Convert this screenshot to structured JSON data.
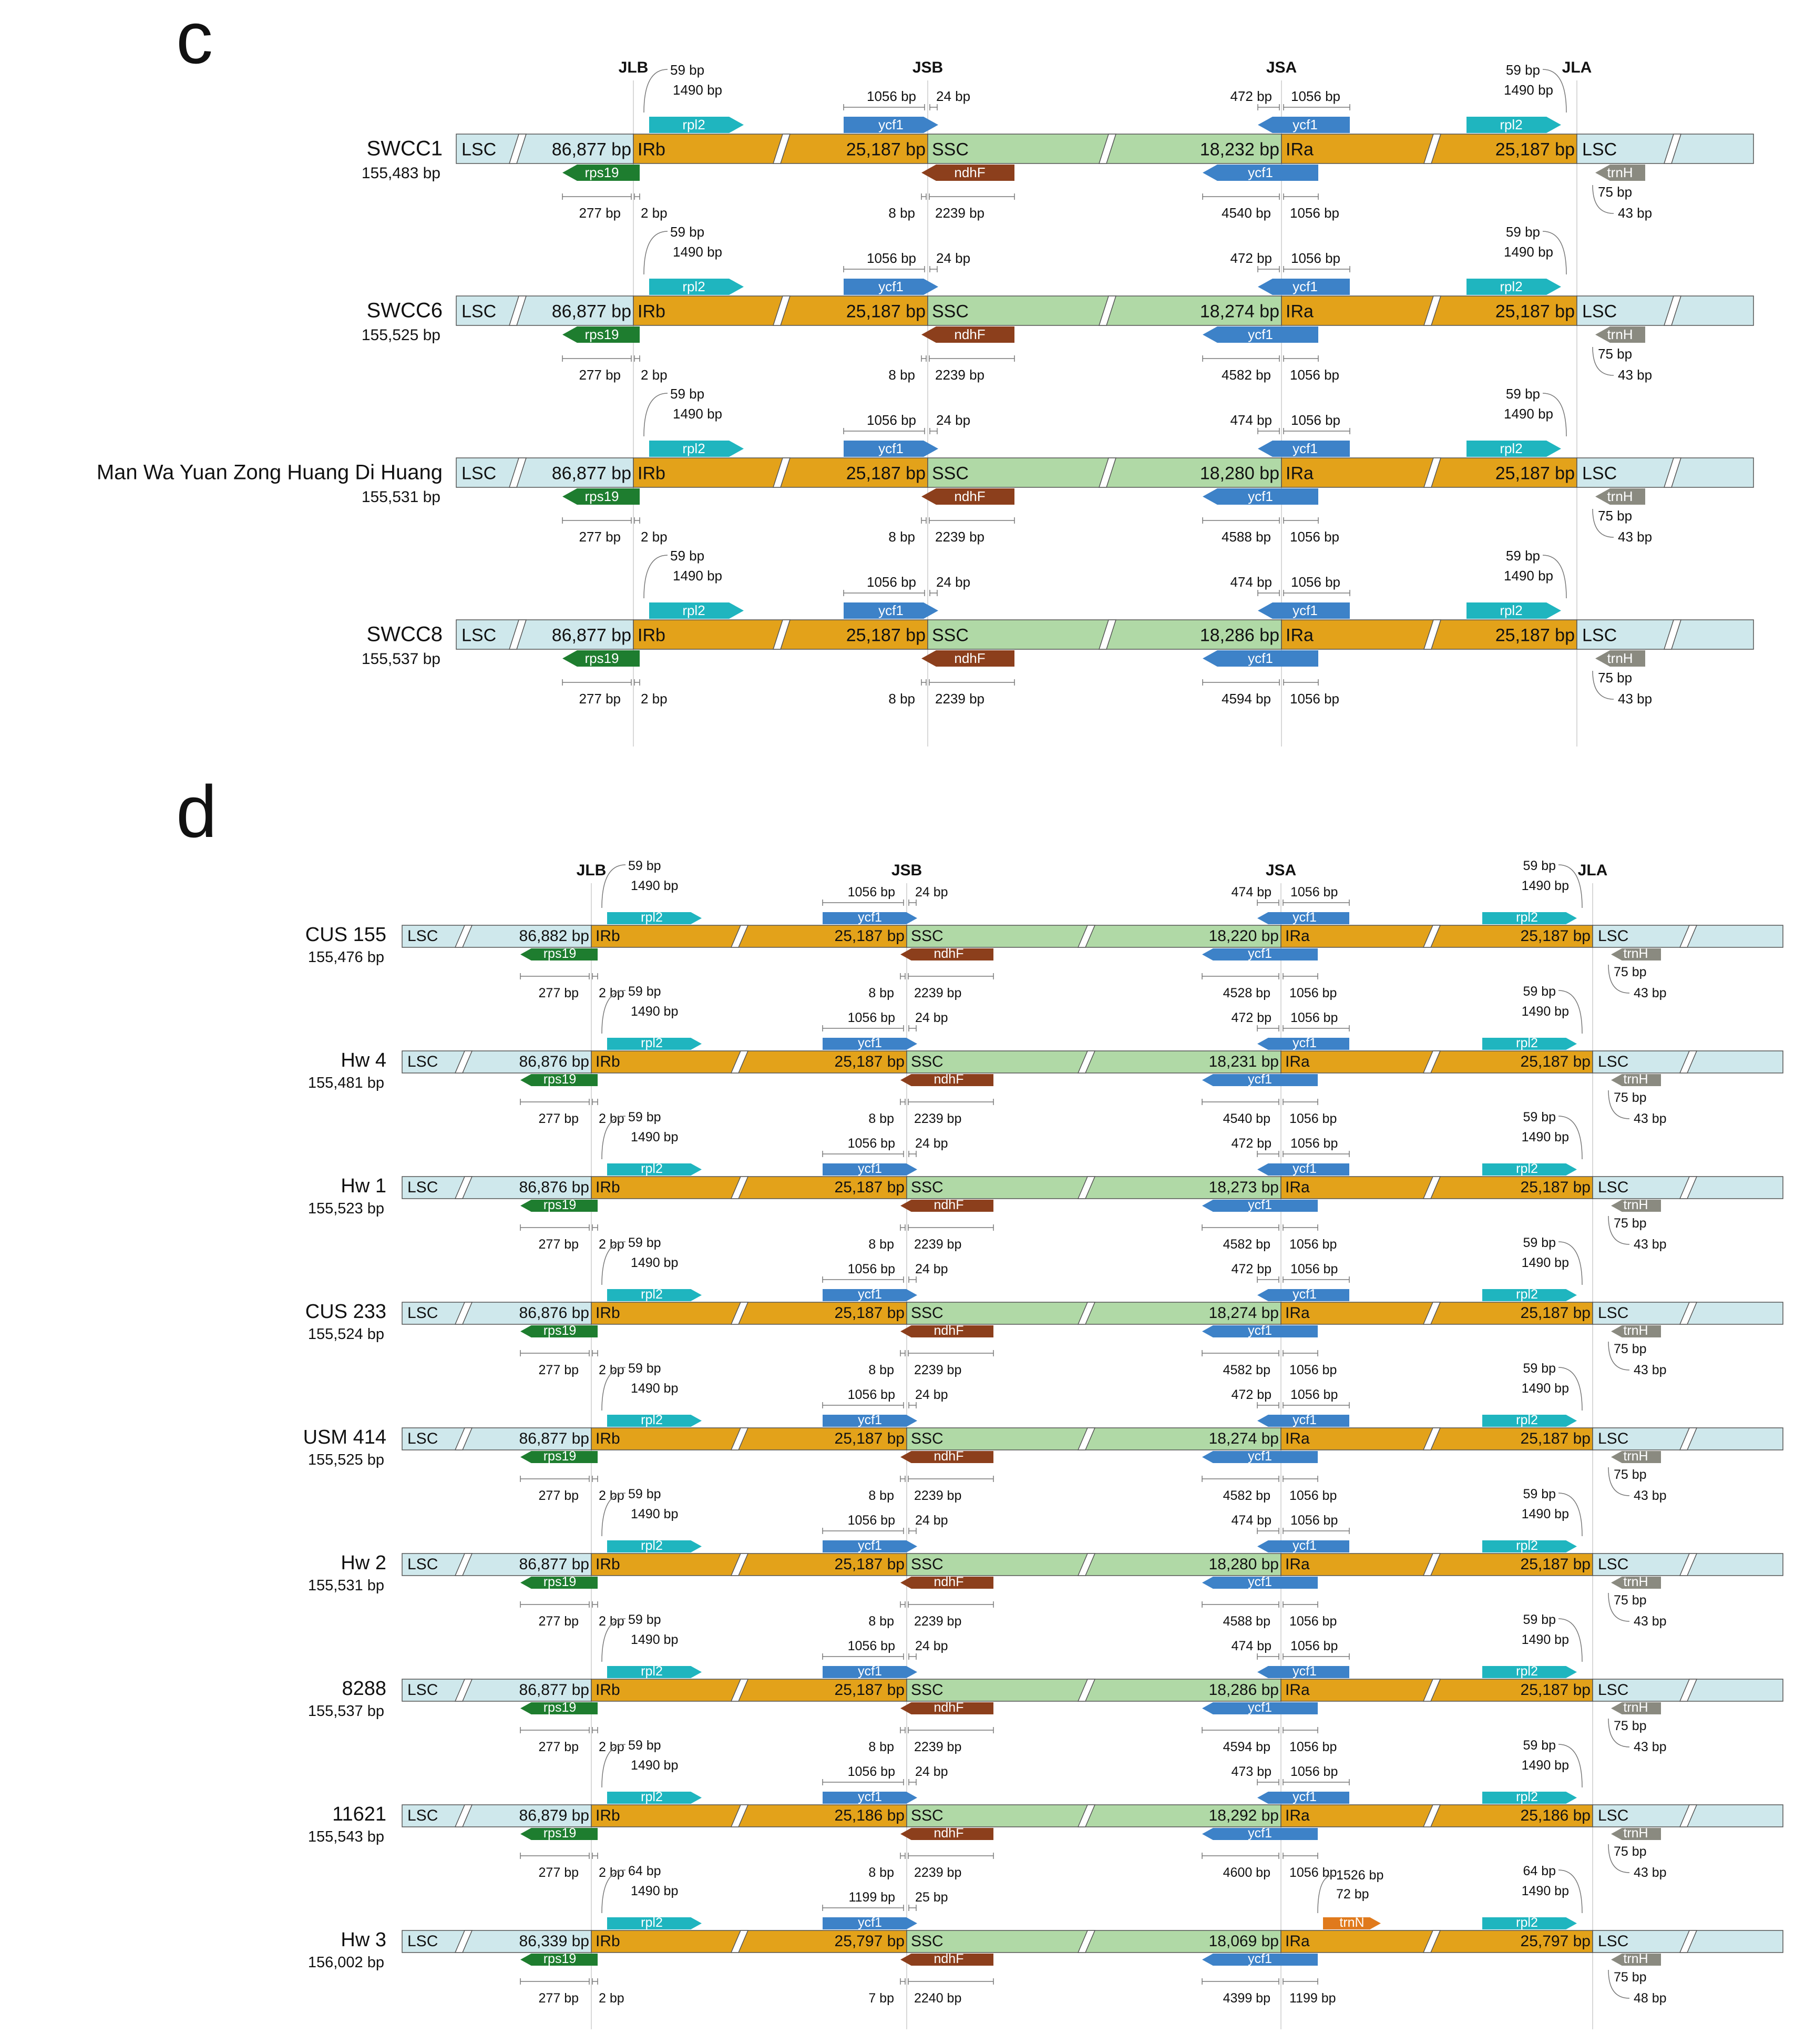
{
  "colors": {
    "lsc": "#cfe8ec",
    "ir": "#e3a21a",
    "ssc": "#b0d9a6",
    "rpl2": "#1fb5bf",
    "ycf1": "#3d82c8",
    "rps19": "#1e7d2f",
    "ndhF": "#8c3f1c",
    "trnH": "#8a8a80",
    "trnN": "#e07a1c",
    "outline": "#555555",
    "text": "#111111",
    "guide": "#cccccc"
  },
  "labels": {
    "lsc": "LSC",
    "irb": "IRb",
    "ssc": "SSC",
    "ira": "IRa",
    "rpl2": "rpl2",
    "ycf1": "ycf1",
    "rps19": "rps19",
    "ndhF": "ndhF",
    "trnH": "trnH",
    "trnN": "trnN"
  },
  "panels": [
    {
      "letter": "c",
      "junctions": [
        "JLB",
        "JSB",
        "JSA",
        "JLA"
      ],
      "rows": [
        {
          "name": "SWCC1",
          "size": "155,483 bp",
          "lsc": "86,877 bp",
          "irb": "25,187 bp",
          "ssc": "18,232 bp",
          "ira": "25,187 bp",
          "rpl2_l_a": "59 bp",
          "rpl2_l_b": "1490 bp",
          "ycf1_a": "1056 bp",
          "ycf1_b": "24 bp",
          "ycf1r_a": "472 bp",
          "ycf1r_b": "1056 bp",
          "rpl2_r_a": "59 bp",
          "rpl2_r_b": "1490 bp",
          "rps19_a": "277 bp",
          "rps19_b": "2 bp",
          "ndhF_a": "8 bp",
          "ndhF_b": "2239 bp",
          "ycf1b_a": "4540 bp",
          "ycf1b_b": "1056 bp",
          "trnH_a": "75 bp",
          "trnH_b": "43 bp"
        },
        {
          "name": "SWCC6",
          "size": "155,525 bp",
          "lsc": "86,877 bp",
          "irb": "25,187 bp",
          "ssc": "18,274 bp",
          "ira": "25,187 bp",
          "rpl2_l_a": "59 bp",
          "rpl2_l_b": "1490 bp",
          "ycf1_a": "1056 bp",
          "ycf1_b": "24 bp",
          "ycf1r_a": "472 bp",
          "ycf1r_b": "1056 bp",
          "rpl2_r_a": "59 bp",
          "rpl2_r_b": "1490 bp",
          "rps19_a": "277 bp",
          "rps19_b": "2 bp",
          "ndhF_a": "8 bp",
          "ndhF_b": "2239 bp",
          "ycf1b_a": "4582 bp",
          "ycf1b_b": "1056 bp",
          "trnH_a": "75 bp",
          "trnH_b": "43 bp"
        },
        {
          "name": "Man Wa Yuan Zong Huang Di Huang",
          "size": "155,531 bp",
          "lsc": "86,877 bp",
          "irb": "25,187 bp",
          "ssc": "18,280 bp",
          "ira": "25,187 bp",
          "rpl2_l_a": "59 bp",
          "rpl2_l_b": "1490 bp",
          "ycf1_a": "1056 bp",
          "ycf1_b": "24 bp",
          "ycf1r_a": "474 bp",
          "ycf1r_b": "1056 bp",
          "rpl2_r_a": "59 bp",
          "rpl2_r_b": "1490 bp",
          "rps19_a": "277 bp",
          "rps19_b": "2 bp",
          "ndhF_a": "8 bp",
          "ndhF_b": "2239 bp",
          "ycf1b_a": "4588 bp",
          "ycf1b_b": "1056 bp",
          "trnH_a": "75 bp",
          "trnH_b": "43 bp"
        },
        {
          "name": "SWCC8",
          "size": "155,537 bp",
          "lsc": "86,877 bp",
          "irb": "25,187 bp",
          "ssc": "18,286 bp",
          "ira": "25,187 bp",
          "rpl2_l_a": "59 bp",
          "rpl2_l_b": "1490 bp",
          "ycf1_a": "1056 bp",
          "ycf1_b": "24 bp",
          "ycf1r_a": "474 bp",
          "ycf1r_b": "1056 bp",
          "rpl2_r_a": "59 bp",
          "rpl2_r_b": "1490 bp",
          "rps19_a": "277 bp",
          "rps19_b": "2 bp",
          "ndhF_a": "8 bp",
          "ndhF_b": "2239 bp",
          "ycf1b_a": "4594 bp",
          "ycf1b_b": "1056 bp",
          "trnH_a": "75 bp",
          "trnH_b": "43 bp"
        }
      ]
    },
    {
      "letter": "d",
      "junctions": [
        "JLB",
        "JSB",
        "JSA",
        "JLA"
      ],
      "rows": [
        {
          "name": "CUS 155",
          "size": "155,476 bp",
          "lsc": "86,882 bp",
          "irb": "25,187 bp",
          "ssc": "18,220 bp",
          "ira": "25,187 bp",
          "rpl2_l_a": "59 bp",
          "rpl2_l_b": "1490 bp",
          "ycf1_a": "1056 bp",
          "ycf1_b": "24 bp",
          "ycf1r_a": "474 bp",
          "ycf1r_b": "1056 bp",
          "rpl2_r_a": "59 bp",
          "rpl2_r_b": "1490 bp",
          "rps19_a": "277 bp",
          "rps19_b": "2 bp",
          "ndhF_a": "8 bp",
          "ndhF_b": "2239 bp",
          "ycf1b_a": "4528 bp",
          "ycf1b_b": "1056 bp",
          "trnH_a": "75 bp",
          "trnH_b": "43 bp"
        },
        {
          "name": "Hw 4",
          "size": "155,481 bp",
          "lsc": "86,876 bp",
          "irb": "25,187 bp",
          "ssc": "18,231 bp",
          "ira": "25,187 bp",
          "rpl2_l_a": "59 bp",
          "rpl2_l_b": "1490 bp",
          "ycf1_a": "1056 bp",
          "ycf1_b": "24 bp",
          "ycf1r_a": "472 bp",
          "ycf1r_b": "1056 bp",
          "rpl2_r_a": "59 bp",
          "rpl2_r_b": "1490 bp",
          "rps19_a": "277 bp",
          "rps19_b": "2 bp",
          "ndhF_a": "8 bp",
          "ndhF_b": "2239 bp",
          "ycf1b_a": "4540 bp",
          "ycf1b_b": "1056 bp",
          "trnH_a": "75 bp",
          "trnH_b": "43 bp"
        },
        {
          "name": "Hw 1",
          "size": "155,523 bp",
          "lsc": "86,876 bp",
          "irb": "25,187 bp",
          "ssc": "18,273 bp",
          "ira": "25,187 bp",
          "rpl2_l_a": "59 bp",
          "rpl2_l_b": "1490 bp",
          "ycf1_a": "1056 bp",
          "ycf1_b": "24 bp",
          "ycf1r_a": "472 bp",
          "ycf1r_b": "1056 bp",
          "rpl2_r_a": "59 bp",
          "rpl2_r_b": "1490 bp",
          "rps19_a": "277 bp",
          "rps19_b": "2 bp",
          "ndhF_a": "8 bp",
          "ndhF_b": "2239 bp",
          "ycf1b_a": "4582 bp",
          "ycf1b_b": "1056 bp",
          "trnH_a": "75 bp",
          "trnH_b": "43 bp"
        },
        {
          "name": "CUS 233",
          "size": "155,524 bp",
          "lsc": "86,876 bp",
          "irb": "25,187 bp",
          "ssc": "18,274 bp",
          "ira": "25,187 bp",
          "rpl2_l_a": "59 bp",
          "rpl2_l_b": "1490 bp",
          "ycf1_a": "1056 bp",
          "ycf1_b": "24 bp",
          "ycf1r_a": "472 bp",
          "ycf1r_b": "1056 bp",
          "rpl2_r_a": "59 bp",
          "rpl2_r_b": "1490 bp",
          "rps19_a": "277 bp",
          "rps19_b": "2 bp",
          "ndhF_a": "8 bp",
          "ndhF_b": "2239 bp",
          "ycf1b_a": "4582 bp",
          "ycf1b_b": "1056 bp",
          "trnH_a": "75 bp",
          "trnH_b": "43 bp"
        },
        {
          "name": "USM 414",
          "size": "155,525 bp",
          "lsc": "86,877 bp",
          "irb": "25,187 bp",
          "ssc": "18,274 bp",
          "ira": "25,187 bp",
          "rpl2_l_a": "59 bp",
          "rpl2_l_b": "1490 bp",
          "ycf1_a": "1056 bp",
          "ycf1_b": "24 bp",
          "ycf1r_a": "472 bp",
          "ycf1r_b": "1056 bp",
          "rpl2_r_a": "59 bp",
          "rpl2_r_b": "1490 bp",
          "rps19_a": "277 bp",
          "rps19_b": "2 bp",
          "ndhF_a": "8 bp",
          "ndhF_b": "2239 bp",
          "ycf1b_a": "4582 bp",
          "ycf1b_b": "1056 bp",
          "trnH_a": "75 bp",
          "trnH_b": "43 bp"
        },
        {
          "name": "Hw 2",
          "size": "155,531 bp",
          "lsc": "86,877 bp",
          "irb": "25,187 bp",
          "ssc": "18,280 bp",
          "ira": "25,187 bp",
          "rpl2_l_a": "59 bp",
          "rpl2_l_b": "1490 bp",
          "ycf1_a": "1056 bp",
          "ycf1_b": "24 bp",
          "ycf1r_a": "474 bp",
          "ycf1r_b": "1056 bp",
          "rpl2_r_a": "59 bp",
          "rpl2_r_b": "1490 bp",
          "rps19_a": "277 bp",
          "rps19_b": "2 bp",
          "ndhF_a": "8 bp",
          "ndhF_b": "2239 bp",
          "ycf1b_a": "4588 bp",
          "ycf1b_b": "1056 bp",
          "trnH_a": "75 bp",
          "trnH_b": "43 bp"
        },
        {
          "name": "8288",
          "size": "155,537 bp",
          "lsc": "86,877 bp",
          "irb": "25,187 bp",
          "ssc": "18,286 bp",
          "ira": "25,187 bp",
          "rpl2_l_a": "59 bp",
          "rpl2_l_b": "1490 bp",
          "ycf1_a": "1056 bp",
          "ycf1_b": "24 bp",
          "ycf1r_a": "474 bp",
          "ycf1r_b": "1056 bp",
          "rpl2_r_a": "59 bp",
          "rpl2_r_b": "1490 bp",
          "rps19_a": "277 bp",
          "rps19_b": "2 bp",
          "ndhF_a": "8 bp",
          "ndhF_b": "2239 bp",
          "ycf1b_a": "4594 bp",
          "ycf1b_b": "1056 bp",
          "trnH_a": "75 bp",
          "trnH_b": "43 bp"
        },
        {
          "name": "11621",
          "size": "155,543 bp",
          "lsc": "86,879 bp",
          "irb": "25,186 bp",
          "ssc": "18,292 bp",
          "ira": "25,186 bp",
          "rpl2_l_a": "59 bp",
          "rpl2_l_b": "1490 bp",
          "ycf1_a": "1056 bp",
          "ycf1_b": "24 bp",
          "ycf1r_a": "473 bp",
          "ycf1r_b": "1056 bp",
          "rpl2_r_a": "59 bp",
          "rpl2_r_b": "1490 bp",
          "rps19_a": "277 bp",
          "rps19_b": "2 bp",
          "ndhF_a": "8 bp",
          "ndhF_b": "2239 bp",
          "ycf1b_a": "4600 bp",
          "ycf1b_b": "1056 bp",
          "trnH_a": "75 bp",
          "trnH_b": "43 bp"
        },
        {
          "name": "Hw 3",
          "size": "156,002 bp",
          "lsc": "86,339 bp",
          "irb": "25,797 bp",
          "ssc": "18,069 bp",
          "ira": "25,797 bp",
          "rpl2_l_a": "64 bp",
          "rpl2_l_b": "1490 bp",
          "ycf1_a": "1199 bp",
          "ycf1_b": "25 bp",
          "trnN_a": "1526 bp",
          "trnN_b": "72 bp",
          "rpl2_r_a": "64 bp",
          "rpl2_r_b": "1490 bp",
          "rps19_a": "277 bp",
          "rps19_b": "2 bp",
          "ndhF_a": "7 bp",
          "ndhF_b": "2240 bp",
          "ycf1b_a": "4399 bp",
          "ycf1b_b": "1199 bp",
          "trnH_a": "75 bp",
          "trnH_b": "48 bp"
        }
      ]
    }
  ]
}
